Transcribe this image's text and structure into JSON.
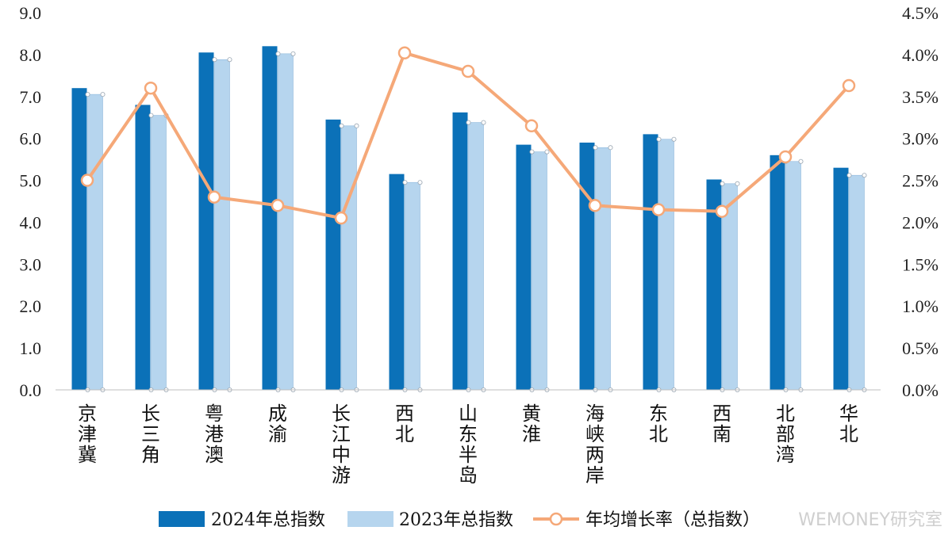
{
  "chart_data": {
    "type": "bar",
    "title": "",
    "categories": [
      "京津冀",
      "长三角",
      "粤港澳",
      "成渝",
      "长江中游",
      "西北",
      "山东半岛",
      "黄淮",
      "海峡两岸",
      "东北",
      "西南",
      "北部湾",
      "华北"
    ],
    "series": [
      {
        "name": "2024年总指数",
        "kind": "bar",
        "axis": "left",
        "color": "#0b71b8",
        "values": [
          7.2,
          6.8,
          8.05,
          8.2,
          6.45,
          5.15,
          6.62,
          5.85,
          5.9,
          6.1,
          5.02,
          5.6,
          5.3
        ]
      },
      {
        "name": "2023年总指数",
        "kind": "bar",
        "axis": "left",
        "color": "#b6d5ee",
        "values": [
          7.05,
          6.55,
          7.88,
          8.02,
          6.3,
          4.95,
          6.38,
          5.68,
          5.78,
          5.98,
          4.92,
          5.45,
          5.12
        ]
      },
      {
        "name": "年均增长率（总指数）",
        "kind": "line",
        "axis": "right",
        "color": "#f5a878",
        "values": [
          2.5,
          3.6,
          2.3,
          2.2,
          2.05,
          4.02,
          3.8,
          3.15,
          2.2,
          2.15,
          2.13,
          2.78,
          3.63
        ]
      }
    ],
    "y_left": {
      "min": 0,
      "max": 9,
      "ticks": [
        "0.0",
        "1.0",
        "2.0",
        "3.0",
        "4.0",
        "5.0",
        "6.0",
        "7.0",
        "8.0",
        "9.0"
      ]
    },
    "y_right": {
      "min": 0,
      "max": 4.5,
      "ticks": [
        "0.0%",
        "0.5%",
        "1.0%",
        "1.5%",
        "2.0%",
        "2.5%",
        "3.0%",
        "3.5%",
        "4.0%",
        "4.5%"
      ]
    },
    "legend": {
      "position": "bottom"
    },
    "watermark": "WEMONEY研究室"
  }
}
